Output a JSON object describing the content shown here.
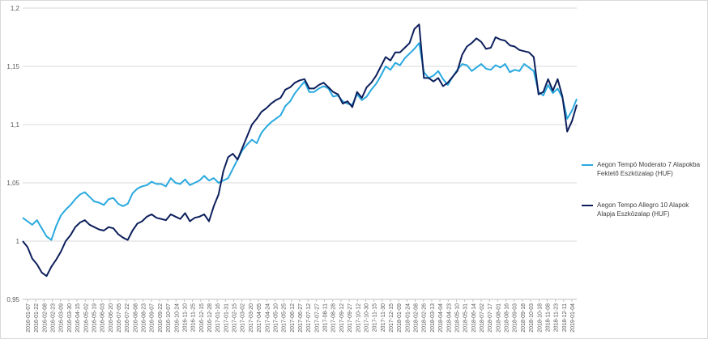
{
  "chart_data": {
    "type": "line",
    "title": "",
    "xlabel": "",
    "ylabel": "",
    "ylim": [
      0.95,
      1.2
    ],
    "y_ticks": [
      "0,95",
      "1",
      "1,05",
      "1,1",
      "1,15",
      "1,2"
    ],
    "y_tick_values": [
      0.95,
      1.0,
      1.05,
      1.1,
      1.15,
      1.2
    ],
    "grid": "horizontal",
    "legend_position": "right",
    "x_tick_labels": [
      "2016-01-07",
      "2016-01-22",
      "2016-02-08",
      "2016-02-23",
      "2016-03-09",
      "2016-03-30",
      "2016-04-15",
      "2016-05-02",
      "2016-05-19",
      "2016-06-03",
      "2016-06-20",
      "2016-07-05",
      "2016-07-22",
      "2016-08-08",
      "2016-08-23",
      "2016-09-07",
      "2016-09-22",
      "2016-10-07",
      "2016-10-24",
      "2016-11-10",
      "2016-11-25",
      "2016-12-15",
      "2016-12-28",
      "2017-01-16",
      "2017-01-31",
      "2017-02-15",
      "2017-03-02",
      "2017-03-20",
      "2017-04-05",
      "2017-04-24",
      "2017-05-10",
      "2017-05-25",
      "2017-06-12",
      "2017-06-27",
      "2017-07-12",
      "2017-07-27",
      "2017-08-11",
      "2017-08-28",
      "2017-09-12",
      "2017-09-27",
      "2017-10-12",
      "2017-10-30",
      "2017-11-15",
      "2017-11-30",
      "2017-12-15",
      "2018-01-09",
      "2018-01-24",
      "2018-02-08",
      "2018-02-26",
      "2018-03-13",
      "2018-04-04",
      "2018-04-23",
      "2018-05-10",
      "2018-05-31",
      "2018-06-14",
      "2018-07-02",
      "2018-07-17",
      "2018-08-01",
      "2018-08-16",
      "2018-09-03",
      "2018-09-18",
      "2018-10-03",
      "2018-10-18",
      "2018-11-08",
      "2018-11-23",
      "2018-12-11",
      "2019-01-04"
    ],
    "series": [
      {
        "name": "Aegon Tempó Moderato 7 Alapokba Fektető Eszközalap (HUF)",
        "color": "#29a9df",
        "values": [
          1.02,
          1.017,
          1.014,
          1.018,
          1.011,
          1.004,
          1.001,
          1.013,
          1.022,
          1.027,
          1.031,
          1.036,
          1.04,
          1.042,
          1.038,
          1.034,
          1.033,
          1.031,
          1.036,
          1.037,
          1.032,
          1.03,
          1.032,
          1.041,
          1.045,
          1.047,
          1.048,
          1.051,
          1.049,
          1.049,
          1.047,
          1.054,
          1.05,
          1.049,
          1.053,
          1.048,
          1.05,
          1.052,
          1.056,
          1.052,
          1.054,
          1.05,
          1.052,
          1.054,
          1.062,
          1.07,
          1.078,
          1.083,
          1.087,
          1.084,
          1.093,
          1.098,
          1.102,
          1.105,
          1.108,
          1.116,
          1.12,
          1.127,
          1.132,
          1.137,
          1.128,
          1.128,
          1.131,
          1.133,
          1.131,
          1.124,
          1.125,
          1.12,
          1.118,
          1.117,
          1.126,
          1.121,
          1.124,
          1.13,
          1.135,
          1.142,
          1.15,
          1.147,
          1.153,
          1.151,
          1.157,
          1.161,
          1.165,
          1.17,
          1.145,
          1.14,
          1.142,
          1.146,
          1.139,
          1.134,
          1.141,
          1.147,
          1.152,
          1.151,
          1.146,
          1.149,
          1.152,
          1.148,
          1.147,
          1.151,
          1.149,
          1.152,
          1.145,
          1.147,
          1.146,
          1.152,
          1.149,
          1.146,
          1.128,
          1.125,
          1.134,
          1.127,
          1.131,
          1.123,
          1.105,
          1.112,
          1.122
        ]
      },
      {
        "name": "Aegon Tempo Allegro 10 Alapok Alapja Eszközalap (HUF)",
        "color": "#0d1f5c",
        "values": [
          1.0,
          0.995,
          0.985,
          0.98,
          0.973,
          0.97,
          0.978,
          0.984,
          0.991,
          1.0,
          1.005,
          1.012,
          1.016,
          1.018,
          1.014,
          1.012,
          1.01,
          1.009,
          1.012,
          1.011,
          1.006,
          1.003,
          1.001,
          1.009,
          1.015,
          1.017,
          1.021,
          1.023,
          1.02,
          1.019,
          1.018,
          1.023,
          1.021,
          1.019,
          1.024,
          1.017,
          1.02,
          1.021,
          1.023,
          1.017,
          1.03,
          1.04,
          1.06,
          1.072,
          1.075,
          1.07,
          1.08,
          1.09,
          1.1,
          1.105,
          1.111,
          1.114,
          1.118,
          1.121,
          1.123,
          1.13,
          1.132,
          1.136,
          1.138,
          1.139,
          1.131,
          1.131,
          1.134,
          1.136,
          1.132,
          1.128,
          1.126,
          1.118,
          1.12,
          1.115,
          1.128,
          1.123,
          1.132,
          1.136,
          1.142,
          1.15,
          1.158,
          1.155,
          1.162,
          1.162,
          1.166,
          1.17,
          1.182,
          1.186,
          1.14,
          1.14,
          1.137,
          1.14,
          1.133,
          1.136,
          1.141,
          1.146,
          1.16,
          1.167,
          1.17,
          1.174,
          1.171,
          1.165,
          1.166,
          1.175,
          1.173,
          1.172,
          1.168,
          1.167,
          1.164,
          1.163,
          1.162,
          1.158,
          1.126,
          1.128,
          1.139,
          1.129,
          1.139,
          1.124,
          1.094,
          1.103,
          1.117
        ]
      }
    ]
  }
}
